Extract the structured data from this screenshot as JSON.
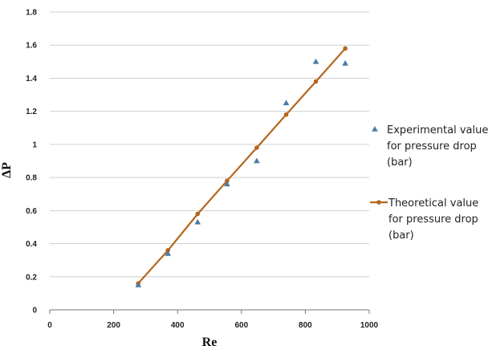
{
  "chart_data": {
    "type": "scatter",
    "xlabel": "Re",
    "ylabel": "ΔP",
    "xlim": [
      0,
      1000
    ],
    "ylim": [
      0,
      1.8
    ],
    "xticks": [
      "0",
      "200",
      "400",
      "600",
      "800",
      "1000"
    ],
    "yticks": [
      "0",
      "0.2",
      "0.4",
      "0.6",
      "0.8",
      "1",
      "1.2",
      "1.4",
      "1.6",
      "1.8"
    ],
    "grid": "horizontal",
    "legend": "right",
    "series": [
      {
        "name": "Experimental value for pressure drop (bar)",
        "legend_lines": [
          "Experimental value",
          "for pressure drop",
          "(bar)"
        ],
        "marker": "triangle",
        "color": "#4a7ba7",
        "x": [
          277,
          370,
          463,
          555,
          648,
          740,
          833,
          925
        ],
        "y": [
          0.15,
          0.34,
          0.53,
          0.76,
          0.9,
          1.25,
          1.5,
          1.49
        ]
      },
      {
        "name": "Theoretical value for pressure drop (bar)",
        "legend_lines": [
          "Theoretical value",
          "for pressure drop",
          "(bar)"
        ],
        "marker": "circle-line",
        "color": "#b5651d",
        "x": [
          277,
          370,
          463,
          555,
          648,
          740,
          833,
          925
        ],
        "y": [
          0.16,
          0.36,
          0.58,
          0.78,
          0.98,
          1.18,
          1.38,
          1.58
        ]
      }
    ]
  }
}
